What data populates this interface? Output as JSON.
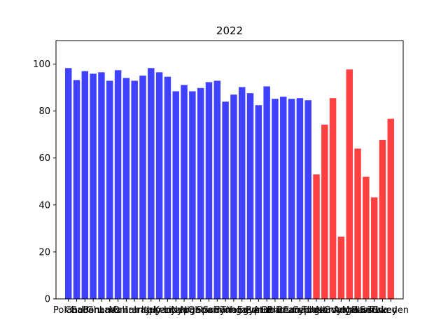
{
  "chart_data": {
    "type": "bar",
    "title": "2022",
    "xlabel": "",
    "ylabel": "",
    "ylim": [
      0,
      110
    ],
    "xlim": [
      -1.5,
      40.5
    ],
    "yticks": [
      0,
      20,
      40,
      60,
      80,
      100
    ],
    "grid": false,
    "legend": "none",
    "x_tick_labels_overlapping": true,
    "colors": {
      "primary": "#4040ff",
      "secondary": "#ff4040"
    },
    "values": [
      98.3,
      93.2,
      97.0,
      95.9,
      96.5,
      92.9,
      97.4,
      94.1,
      92.9,
      95.1,
      98.3,
      96.5,
      94.6,
      88.4,
      91.1,
      88.4,
      89.8,
      92.3,
      92.9,
      84.0,
      87.0,
      90.2,
      87.6,
      82.5,
      90.5,
      85.2,
      86.1,
      85.2,
      85.5,
      84.6,
      53.0,
      74.2,
      85.5,
      26.5,
      97.7,
      64.0,
      52.0,
      43.2,
      67.7,
      76.7
    ],
    "series_color_index": [
      0,
      0,
      0,
      0,
      0,
      0,
      0,
      0,
      0,
      0,
      0,
      0,
      0,
      0,
      0,
      0,
      0,
      0,
      0,
      0,
      0,
      0,
      0,
      0,
      0,
      0,
      0,
      0,
      0,
      0,
      1,
      1,
      1,
      1,
      1,
      1,
      1,
      1,
      1,
      1
    ],
    "categories": [
      "Poland",
      "Chad",
      "Gabon",
      "Peru",
      "Ghana",
      "Laos",
      "Mali",
      "Oman",
      "Iran",
      "Iraq",
      "Italy",
      "Japan",
      "Kenya",
      "Libya",
      "Nepal",
      "Niger",
      "Qatar",
      "Spain",
      "Sudan",
      "Syria",
      "Tonga",
      "Yemen",
      "Egypt",
      "Benin",
      "Aruba",
      "Belize",
      "Bhutan",
      "Brunei",
      "Canada",
      "Cyprus",
      "Tuvalu",
      "Uganda",
      "Norway",
      "Guyana",
      "Angola",
      "Malawi",
      "Russia",
      "Serbia",
      "Turkey",
      "Sweden"
    ]
  }
}
